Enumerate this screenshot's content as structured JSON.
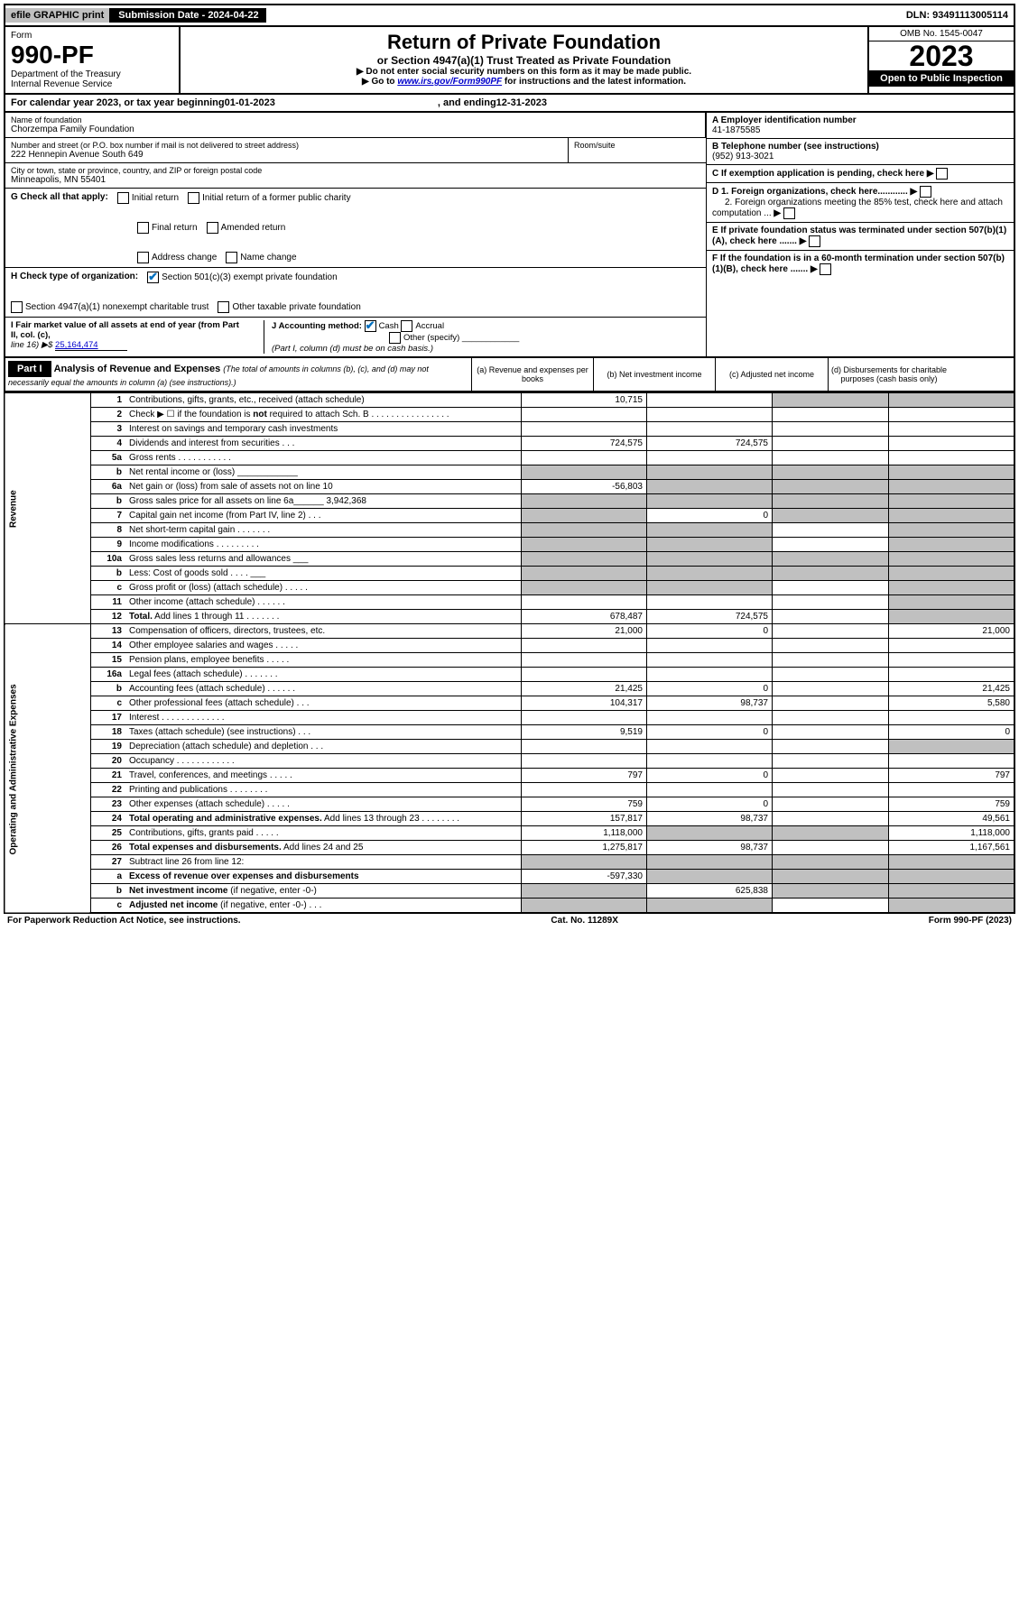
{
  "top": {
    "efile": "efile GRAPHIC print",
    "submission_label": "Submission Date - 2024-04-22",
    "dln": "DLN: 93491113005114"
  },
  "header": {
    "form_label": "Form",
    "form_number": "990-PF",
    "dept": "Department of the Treasury",
    "irs": "Internal Revenue Service",
    "title": "Return of Private Foundation",
    "subtitle": "or Section 4947(a)(1) Trust Treated as Private Foundation",
    "instr1": "▶ Do not enter social security numbers on this form as it may be made public.",
    "instr2_prefix": "▶ Go to ",
    "instr2_link": "www.irs.gov/Form990PF",
    "instr2_suffix": " for instructions and the latest information.",
    "omb": "OMB No. 1545-0047",
    "year": "2023",
    "inspection": "Open to Public Inspection"
  },
  "calendar": {
    "prefix": "For calendar year 2023, or tax year beginning ",
    "start": "01-01-2023",
    "mid": ", and ending ",
    "end": "12-31-2023"
  },
  "info": {
    "name_label": "Name of foundation",
    "name": "Chorzempa Family Foundation",
    "addr_label": "Number and street (or P.O. box number if mail is not delivered to street address)",
    "addr": "222 Hennepin Avenue South 649",
    "room_label": "Room/suite",
    "city_label": "City or town, state or province, country, and ZIP or foreign postal code",
    "city": "Minneapolis, MN  55401",
    "ein_label": "A Employer identification number",
    "ein": "41-1875585",
    "phone_label": "B Telephone number (see instructions)",
    "phone": "(952) 913-3021",
    "c_label": "C If exemption application is pending, check here",
    "d1": "D 1. Foreign organizations, check here............",
    "d2": "2. Foreign organizations meeting the 85% test, check here and attach computation ...",
    "e": "E  If private foundation status was terminated under section 507(b)(1)(A), check here .......",
    "f": "F  If the foundation is in a 60-month termination under section 507(b)(1)(B), check here .......",
    "g_label": "G Check all that apply:",
    "g_opts": [
      "Initial return",
      "Initial return of a former public charity",
      "Final return",
      "Amended return",
      "Address change",
      "Name change"
    ],
    "h_label": "H Check type of organization:",
    "h_opt1": "Section 501(c)(3) exempt private foundation",
    "h_opt2": "Section 4947(a)(1) nonexempt charitable trust",
    "h_opt3": "Other taxable private foundation",
    "i_label": "I Fair market value of all assets at end of year (from Part II, col. (c),",
    "i_line": "line 16) ▶$ ",
    "i_value": "25,164,474",
    "j_label": "J Accounting method:",
    "j_cash": "Cash",
    "j_accrual": "Accrual",
    "j_other": "Other (specify)",
    "j_note": "(Part I, column (d) must be on cash basis.)"
  },
  "part1": {
    "label": "Part I",
    "title": "Analysis of Revenue and Expenses ",
    "note": "(The total of amounts in columns (b), (c), and (d) may not necessarily equal the amounts in column (a) (see instructions).)",
    "col_a": "(a)   Revenue and expenses per books",
    "col_b": "(b)   Net investment income",
    "col_c": "(c)   Adjusted net income",
    "col_d": "(d)   Disbursements for charitable purposes (cash basis only)"
  },
  "side": {
    "revenue": "Revenue",
    "expenses": "Operating and Administrative Expenses"
  },
  "rows": [
    {
      "n": "1",
      "d": "Contributions, gifts, grants, etc., received (attach schedule)",
      "a": "10,715",
      "b": "",
      "c": "g",
      "dd": "g"
    },
    {
      "n": "2",
      "d": "Check ▶ ☐ if the foundation is <b>not</b> required to attach Sch. B   .  .  .  .  .  .  .  .  .  .  .  .  .  .  .  .",
      "a": "",
      "b": "",
      "c": "",
      "dd": ""
    },
    {
      "n": "3",
      "d": "Interest on savings and temporary cash investments",
      "a": "",
      "b": "",
      "c": "",
      "dd": ""
    },
    {
      "n": "4",
      "d": "Dividends and interest from securities   .   .   .",
      "a": "724,575",
      "b": "724,575",
      "c": "",
      "dd": ""
    },
    {
      "n": "5a",
      "d": "Gross rents   .   .   .   .   .   .   .   .   .   .   .",
      "a": "",
      "b": "",
      "c": "",
      "dd": ""
    },
    {
      "n": "b",
      "d": "Net rental income or (loss) ____________",
      "a": "g",
      "b": "g",
      "c": "g",
      "dd": "g"
    },
    {
      "n": "6a",
      "d": "Net gain or (loss) from sale of assets not on line 10",
      "a": "-56,803",
      "b": "g",
      "c": "g",
      "dd": "g"
    },
    {
      "n": "b",
      "d": "Gross sales price for all assets on line 6a______ 3,942,368",
      "a": "g",
      "b": "g",
      "c": "g",
      "dd": "g"
    },
    {
      "n": "7",
      "d": "Capital gain net income (from Part IV, line 2)   .   .   .",
      "a": "g",
      "b": "0",
      "c": "g",
      "dd": "g"
    },
    {
      "n": "8",
      "d": "Net short-term capital gain   .   .   .   .   .   .   .",
      "a": "g",
      "b": "g",
      "c": "",
      "dd": "g"
    },
    {
      "n": "9",
      "d": "Income modifications   .   .   .   .   .   .   .   .   .",
      "a": "g",
      "b": "g",
      "c": "",
      "dd": "g"
    },
    {
      "n": "10a",
      "d": "Gross sales less returns and allowances  ___",
      "a": "g",
      "b": "g",
      "c": "g",
      "dd": "g"
    },
    {
      "n": "b",
      "d": "Less: Cost of goods sold   .   .   .   .  ___",
      "a": "g",
      "b": "g",
      "c": "g",
      "dd": "g"
    },
    {
      "n": "c",
      "d": "Gross profit or (loss) (attach schedule)   .   .   .   .   .",
      "a": "g",
      "b": "g",
      "c": "",
      "dd": "g"
    },
    {
      "n": "11",
      "d": "Other income (attach schedule)   .   .   .   .   .   .",
      "a": "",
      "b": "",
      "c": "",
      "dd": "g"
    },
    {
      "n": "12",
      "d": "<b>Total.</b> Add lines 1 through 11   .   .   .   .   .   .   .",
      "a": "678,487",
      "b": "724,575",
      "c": "",
      "dd": "g"
    },
    {
      "n": "13",
      "d": "Compensation of officers, directors, trustees, etc.",
      "a": "21,000",
      "b": "0",
      "c": "",
      "dd": "21,000"
    },
    {
      "n": "14",
      "d": "Other employee salaries and wages   .   .   .   .   .",
      "a": "",
      "b": "",
      "c": "",
      "dd": ""
    },
    {
      "n": "15",
      "d": "Pension plans, employee benefits   .   .   .   .   .",
      "a": "",
      "b": "",
      "c": "",
      "dd": ""
    },
    {
      "n": "16a",
      "d": "Legal fees (attach schedule)   .   .   .   .   .   .   .",
      "a": "",
      "b": "",
      "c": "",
      "dd": ""
    },
    {
      "n": "b",
      "d": "Accounting fees (attach schedule)   .   .   .   .   .   .",
      "a": "21,425",
      "b": "0",
      "c": "",
      "dd": "21,425"
    },
    {
      "n": "c",
      "d": "Other professional fees (attach schedule)   .   .   .",
      "a": "104,317",
      "b": "98,737",
      "c": "",
      "dd": "5,580"
    },
    {
      "n": "17",
      "d": "Interest   .   .   .   .   .   .   .   .   .   .   .   .   .",
      "a": "",
      "b": "",
      "c": "",
      "dd": ""
    },
    {
      "n": "18",
      "d": "Taxes (attach schedule) (see instructions)   .   .   .",
      "a": "9,519",
      "b": "0",
      "c": "",
      "dd": "0"
    },
    {
      "n": "19",
      "d": "Depreciation (attach schedule) and depletion   .   .   .",
      "a": "",
      "b": "",
      "c": "",
      "dd": "g"
    },
    {
      "n": "20",
      "d": "Occupancy   .   .   .   .   .   .   .   .   .   .   .   .",
      "a": "",
      "b": "",
      "c": "",
      "dd": ""
    },
    {
      "n": "21",
      "d": "Travel, conferences, and meetings   .   .   .   .   .",
      "a": "797",
      "b": "0",
      "c": "",
      "dd": "797"
    },
    {
      "n": "22",
      "d": "Printing and publications   .   .   .   .   .   .   .   .",
      "a": "",
      "b": "",
      "c": "",
      "dd": ""
    },
    {
      "n": "23",
      "d": "Other expenses (attach schedule)   .   .   .   .   .",
      "a": "759",
      "b": "0",
      "c": "",
      "dd": "759"
    },
    {
      "n": "24",
      "d": "<b>Total operating and administrative expenses.</b> Add lines 13 through 23   .   .   .   .   .   .   .   .",
      "a": "157,817",
      "b": "98,737",
      "c": "",
      "dd": "49,561"
    },
    {
      "n": "25",
      "d": "Contributions, gifts, grants paid   .   .   .   .   .",
      "a": "1,118,000",
      "b": "g",
      "c": "g",
      "dd": "1,118,000"
    },
    {
      "n": "26",
      "d": "<b>Total expenses and disbursements.</b> Add lines 24 and 25",
      "a": "1,275,817",
      "b": "98,737",
      "c": "",
      "dd": "1,167,561"
    },
    {
      "n": "27",
      "d": "Subtract line 26 from line 12:",
      "a": "g",
      "b": "g",
      "c": "g",
      "dd": "g"
    },
    {
      "n": "a",
      "d": "<b>Excess of revenue over expenses and disbursements</b>",
      "a": "-597,330",
      "b": "g",
      "c": "g",
      "dd": "g"
    },
    {
      "n": "b",
      "d": "<b>Net investment income</b> (if negative, enter -0-)",
      "a": "g",
      "b": "625,838",
      "c": "g",
      "dd": "g"
    },
    {
      "n": "c",
      "d": "<b>Adjusted net income</b> (if negative, enter -0-)   .   .   .",
      "a": "g",
      "b": "g",
      "c": "",
      "dd": "g"
    }
  ],
  "footer": {
    "left": "For Paperwork Reduction Act Notice, see instructions.",
    "center": "Cat. No. 11289X",
    "right": "Form 990-PF (2023)"
  },
  "colors": {
    "gray": "#c0c0c0",
    "blue_check": "#0070c0",
    "link": "#0000cc"
  }
}
